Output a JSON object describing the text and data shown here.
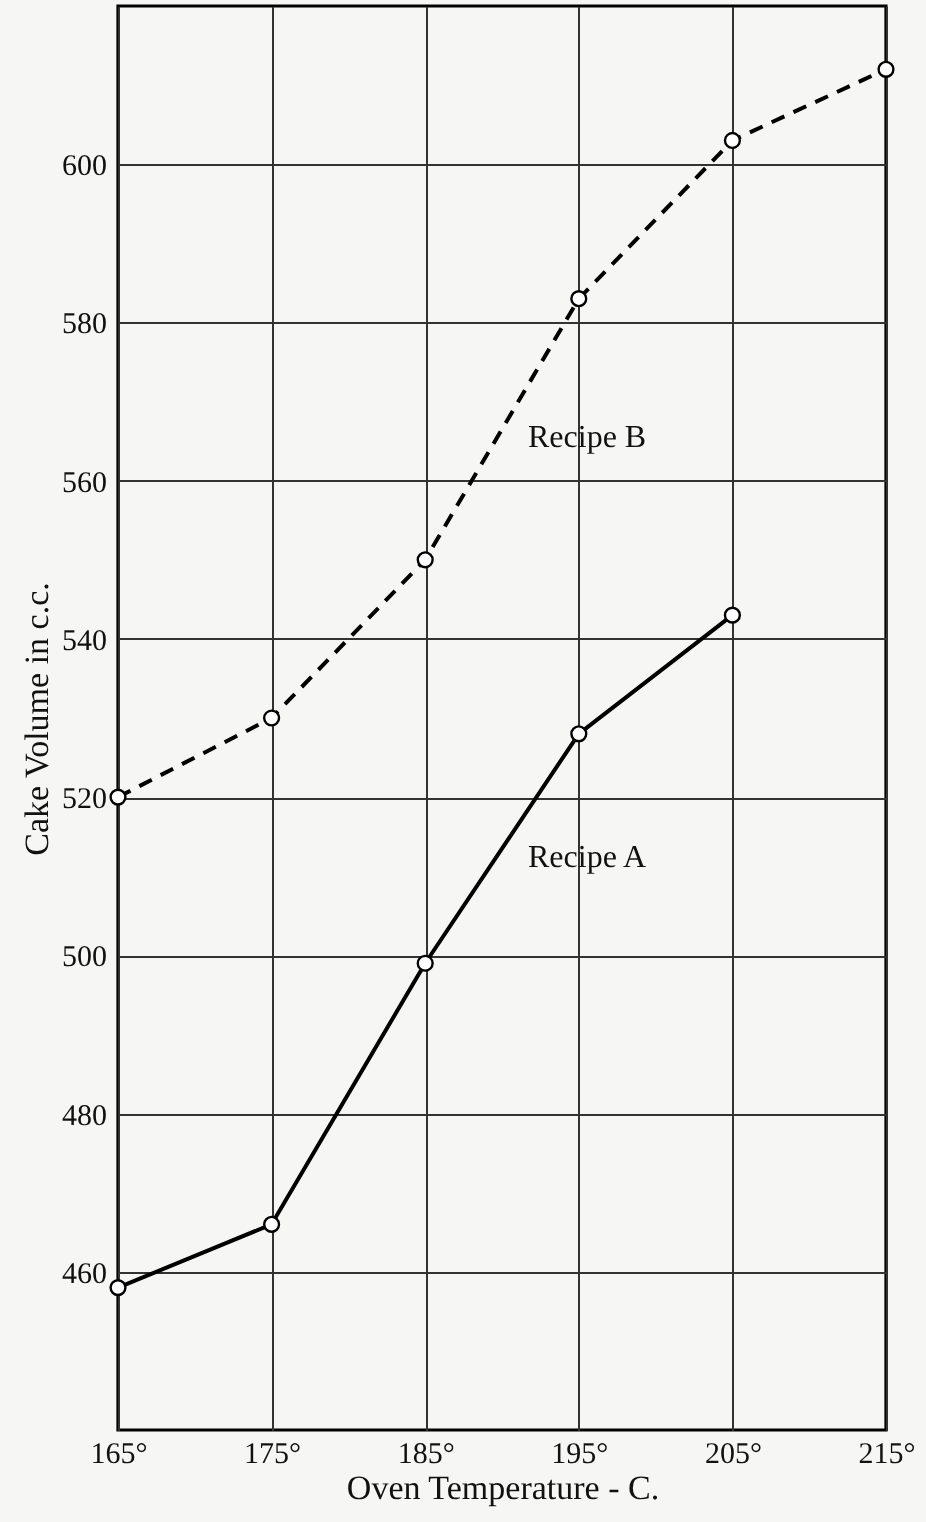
{
  "chart_data": {
    "type": "line",
    "xlabel": "Oven Temperature - C.",
    "ylabel": "Cake Volume in c.c.",
    "series": [
      {
        "name": "Recipe A",
        "color": "#000000",
        "line_style": "solid",
        "x": [
          165,
          175,
          185,
          195,
          205
        ],
        "values": [
          458,
          466,
          499,
          528,
          543
        ]
      },
      {
        "name": "Recipe B",
        "color": "#000000",
        "line_style": "dashed",
        "x": [
          165,
          175,
          185,
          195,
          205,
          215
        ],
        "values": [
          520,
          530,
          550,
          583,
          603,
          612
        ]
      }
    ],
    "xlim": [
      165,
      215
    ],
    "xticks": [
      {
        "value": 165,
        "label": "165°"
      },
      {
        "value": 175,
        "label": "175°"
      },
      {
        "value": 185,
        "label": "185°"
      },
      {
        "value": 195,
        "label": "195°"
      },
      {
        "value": 205,
        "label": "205°"
      },
      {
        "value": 215,
        "label": "215°"
      }
    ],
    "ylim": [
      440,
      620
    ],
    "yticks": [
      460,
      480,
      500,
      520,
      540,
      560,
      580,
      600
    ],
    "grid": true,
    "marker": "circle",
    "legend": false
  }
}
